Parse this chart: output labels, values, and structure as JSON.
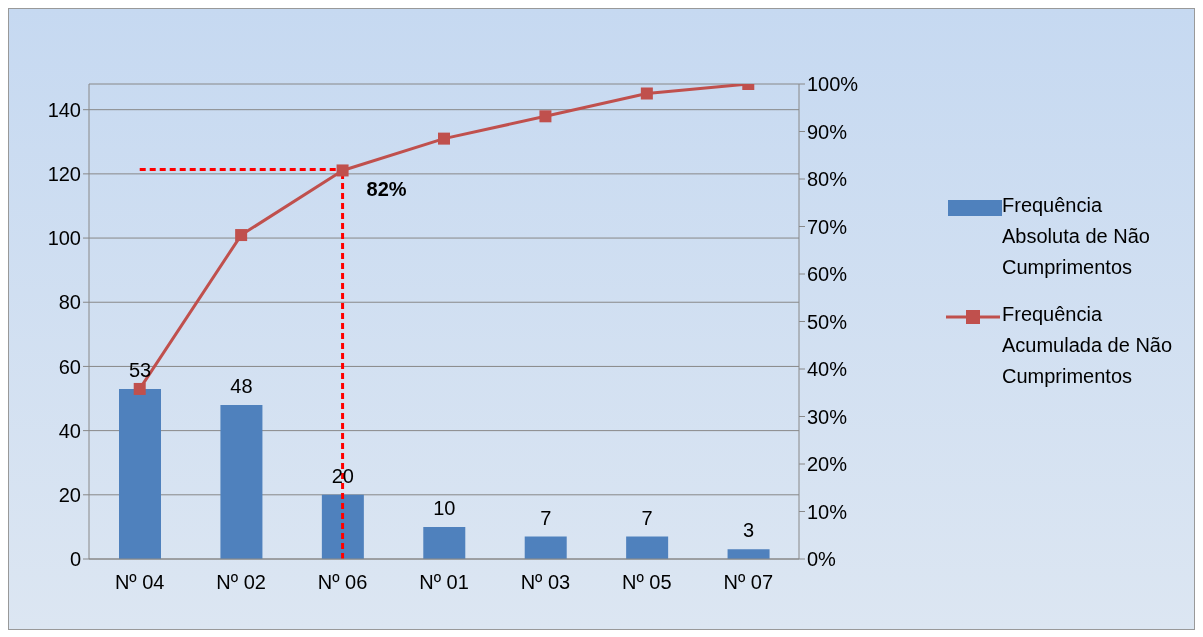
{
  "chart_data": {
    "type": "bar",
    "categories": [
      "Nº 04",
      "Nº 02",
      "Nº 06",
      "Nº 01",
      "Nº 03",
      "Nº 05",
      "Nº 07"
    ],
    "series": [
      {
        "name": "Frequência Absoluta de Não Cumprimentos",
        "color": "#4f81bd",
        "values": [
          53,
          48,
          20,
          10,
          7,
          7,
          3
        ],
        "value_labels": [
          "53",
          "48",
          "20",
          "10",
          "7",
          "7",
          "3"
        ]
      },
      {
        "name": "Frequência Acumulada de Não Cumprimentos",
        "type": "line",
        "axis": "y2",
        "color": "#c0504d",
        "marker": "square",
        "values": [
          35.8,
          68.2,
          81.8,
          88.5,
          93.2,
          98.0,
          100
        ],
        "value_labels": [
          null,
          null,
          "82%",
          null,
          null,
          null,
          null
        ]
      }
    ],
    "ylim": [
      0,
      148
    ],
    "yticks": [
      0,
      20,
      40,
      60,
      80,
      100,
      120,
      140
    ],
    "y2lim": [
      0,
      100
    ],
    "y2ticks": [
      {
        "value": 0,
        "label": "0%"
      },
      {
        "value": 10,
        "label": "10%"
      },
      {
        "value": 20,
        "label": "20%"
      },
      {
        "value": 30,
        "label": "30%"
      },
      {
        "value": 40,
        "label": "40%"
      },
      {
        "value": 50,
        "label": "50%"
      },
      {
        "value": 60,
        "label": "60%"
      },
      {
        "value": 70,
        "label": "70%"
      },
      {
        "value": 80,
        "label": "80%"
      },
      {
        "value": 90,
        "label": "90%"
      },
      {
        "value": 100,
        "label": "100%"
      }
    ],
    "ref_lines": [
      {
        "axis": "y2",
        "value": 82,
        "color": "#ff0000",
        "line_style": "dashed"
      },
      {
        "axis": "x",
        "value": "Nº 06",
        "color": "#ff0000",
        "line_style": "dashed"
      }
    ],
    "grid": "y",
    "legend": "right"
  }
}
